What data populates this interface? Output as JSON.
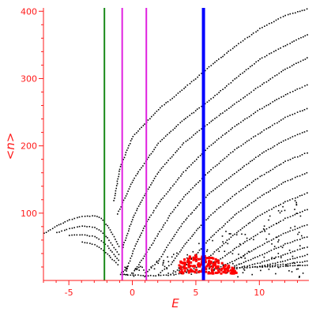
{
  "chart_data": {
    "type": "scatter",
    "title": "",
    "xlabel": "E",
    "ylabel": "<n>",
    "xlim": [
      -7,
      13.9
    ],
    "ylim": [
      0,
      405
    ],
    "x_ticks": [
      -5,
      0,
      5,
      10
    ],
    "y_ticks": [
      100,
      200,
      300,
      400
    ],
    "grid": false,
    "legend": "none",
    "colors": {
      "axis": "#ff1a1a",
      "points": "#000000",
      "highlight": "#ff0000",
      "line_green": "#1a8a1a",
      "line_magenta": "#e020e0",
      "line_blue": "#0000ff"
    },
    "vertical_lines": [
      {
        "x": -2.2,
        "color": "green",
        "width": 2
      },
      {
        "x": -0.8,
        "color": "magenta",
        "width": 2
      },
      {
        "x": 1.1,
        "color": "magenta",
        "width": 2
      },
      {
        "x": 5.6,
        "color": "blue",
        "width": 4
      }
    ],
    "series": [
      {
        "points": [
          [
            -7,
            71
          ],
          [
            -6,
            82
          ],
          [
            -5,
            91
          ],
          [
            -4,
            96
          ],
          [
            -3,
            97
          ],
          [
            -2.5,
            93
          ],
          [
            -2,
            82
          ],
          [
            -1.5,
            66
          ],
          [
            -1,
            48
          ]
        ]
      },
      {
        "points": [
          [
            -6,
            72
          ],
          [
            -5,
            78
          ],
          [
            -4,
            82
          ],
          [
            -3,
            80
          ],
          [
            -2.5,
            74
          ],
          [
            -2,
            64
          ],
          [
            -1.5,
            50
          ],
          [
            -1,
            36
          ]
        ]
      },
      {
        "points": [
          [
            -5,
            68
          ],
          [
            -4,
            69
          ],
          [
            -3,
            66
          ],
          [
            -2.5,
            60
          ],
          [
            -2,
            52
          ],
          [
            -1.5,
            40
          ],
          [
            -1,
            28
          ]
        ]
      },
      {
        "points": [
          [
            -4,
            58
          ],
          [
            -3,
            54
          ],
          [
            -2.5,
            48
          ],
          [
            -2,
            40
          ],
          [
            -1.5,
            30
          ],
          [
            -1,
            22
          ]
        ]
      },
      {
        "points": [
          [
            -1.5,
            120
          ],
          [
            -1,
            170
          ],
          [
            0,
            215
          ],
          [
            2,
            255
          ],
          [
            4,
            286
          ],
          [
            6,
            318
          ],
          [
            8,
            348
          ],
          [
            10,
            375
          ],
          [
            12,
            395
          ],
          [
            13.9,
            405
          ]
        ]
      },
      {
        "points": [
          [
            -1.2,
            100
          ],
          [
            0,
            150
          ],
          [
            2,
            205
          ],
          [
            4,
            240
          ],
          [
            6,
            268
          ],
          [
            8,
            300
          ],
          [
            10,
            330
          ],
          [
            12,
            350
          ],
          [
            13.9,
            368
          ]
        ]
      },
      {
        "points": [
          [
            -0.8,
            50
          ],
          [
            0,
            95
          ],
          [
            1,
            130
          ],
          [
            2,
            162
          ],
          [
            4,
            205
          ],
          [
            6,
            235
          ],
          [
            8,
            263
          ],
          [
            10,
            290
          ],
          [
            12,
            315
          ],
          [
            13.9,
            333
          ]
        ]
      },
      {
        "points": [
          [
            -0.5,
            15
          ],
          [
            0,
            45
          ],
          [
            1,
            85
          ],
          [
            2,
            115
          ],
          [
            4,
            162
          ],
          [
            6,
            200
          ],
          [
            8,
            230
          ],
          [
            10,
            255
          ],
          [
            12,
            277
          ],
          [
            13.9,
            293
          ]
        ]
      },
      {
        "points": [
          [
            0,
            12
          ],
          [
            1,
            40
          ],
          [
            2,
            70
          ],
          [
            3,
            100
          ],
          [
            4,
            125
          ],
          [
            6,
            163
          ],
          [
            8,
            195
          ],
          [
            10,
            220
          ],
          [
            12,
            243
          ],
          [
            13.9,
            258
          ]
        ]
      },
      {
        "points": [
          [
            1,
            12
          ],
          [
            2,
            30
          ],
          [
            3,
            60
          ],
          [
            4,
            88
          ],
          [
            6,
            130
          ],
          [
            8,
            160
          ],
          [
            10,
            188
          ],
          [
            12,
            210
          ],
          [
            13.9,
            225
          ]
        ]
      },
      {
        "points": [
          [
            2,
            10
          ],
          [
            3,
            25
          ],
          [
            4,
            52
          ],
          [
            5,
            75
          ],
          [
            6,
            96
          ],
          [
            8,
            128
          ],
          [
            10,
            155
          ],
          [
            12,
            178
          ],
          [
            13.9,
            192
          ]
        ]
      },
      {
        "points": [
          [
            3,
            10
          ],
          [
            4,
            22
          ],
          [
            5,
            40
          ],
          [
            6,
            62
          ],
          [
            8,
            98
          ],
          [
            10,
            125
          ],
          [
            12,
            148
          ],
          [
            13.9,
            162
          ]
        ]
      },
      {
        "points": [
          [
            4,
            12
          ],
          [
            5,
            20
          ],
          [
            6,
            36
          ],
          [
            8,
            70
          ],
          [
            10,
            98
          ],
          [
            12,
            118
          ],
          [
            13.9,
            132
          ]
        ]
      },
      {
        "points": [
          [
            5,
            12
          ],
          [
            6,
            20
          ],
          [
            8,
            48
          ],
          [
            10,
            72
          ],
          [
            12,
            93
          ],
          [
            13.9,
            108
          ]
        ]
      },
      {
        "points": [
          [
            6,
            14
          ],
          [
            8,
            30
          ],
          [
            10,
            52
          ],
          [
            12,
            72
          ],
          [
            13.9,
            85
          ]
        ]
      },
      {
        "points": [
          [
            7,
            16
          ],
          [
            8,
            22
          ],
          [
            10,
            38
          ],
          [
            12,
            55
          ],
          [
            13.9,
            67
          ]
        ]
      },
      {
        "points": [
          [
            8,
            18
          ],
          [
            10,
            27
          ],
          [
            12,
            40
          ],
          [
            13.9,
            52
          ]
        ]
      },
      {
        "points": [
          [
            9,
            20
          ],
          [
            10,
            22
          ],
          [
            12,
            30
          ],
          [
            13.9,
            40
          ]
        ]
      },
      {
        "points": [
          [
            10,
            21
          ],
          [
            12,
            25
          ],
          [
            13.9,
            30
          ]
        ]
      },
      {
        "points": [
          [
            -1,
            10
          ],
          [
            0,
            9
          ],
          [
            1,
            8
          ],
          [
            2,
            8
          ],
          [
            3,
            9
          ],
          [
            4,
            12
          ],
          [
            5,
            15
          ],
          [
            6,
            18
          ],
          [
            8,
            20
          ],
          [
            10,
            21
          ],
          [
            12,
            22
          ],
          [
            13.9,
            24
          ]
        ]
      }
    ],
    "highlight_cluster": {
      "x_range": [
        3.6,
        8.1
      ],
      "y_range": [
        12,
        40
      ]
    }
  }
}
